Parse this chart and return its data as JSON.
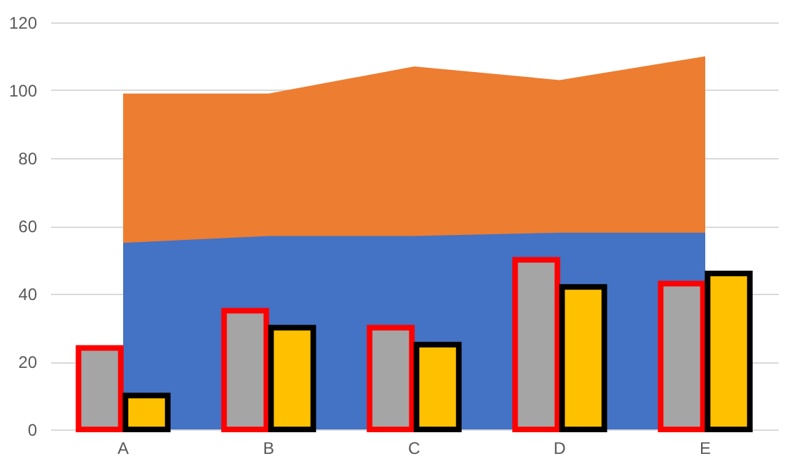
{
  "chart_data": {
    "type": "area",
    "categories": [
      "A",
      "B",
      "C",
      "D",
      "E"
    ],
    "series": [
      {
        "color": "#ed7d31",
        "values": [
          99,
          99,
          107,
          103,
          110
        ]
      },
      {
        "color": "#4472c4",
        "values": [
          55,
          57,
          57,
          58,
          58
        ]
      },
      {
        "type": "bar",
        "color": "#a5a5a5",
        "values": [
          24,
          35,
          30,
          50,
          43
        ]
      },
      {
        "type": "bar",
        "color": "#ffc000",
        "values": [
          10,
          30,
          25,
          42,
          46
        ]
      }
    ],
    "ylim": [
      0,
      120
    ],
    "yticks": [
      0,
      20,
      40,
      60,
      80,
      100,
      120
    ],
    "grid": "y"
  }
}
